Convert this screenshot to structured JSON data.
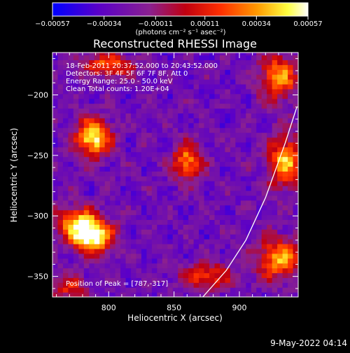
{
  "chart_data": {
    "type": "heatmap",
    "title": "Reconstructed RHESSI Image",
    "xlabel": "Heliocentric X (arcsec)",
    "ylabel": "Heliocentric Y (arcsec)",
    "xlim": [
      757,
      945
    ],
    "ylim": [
      -367,
      -165
    ],
    "xticks": [
      800,
      850,
      900
    ],
    "yticks": [
      -200,
      -250,
      -300,
      -350
    ],
    "xtick_labels": [
      "800",
      "850",
      "900"
    ],
    "ytick_labels": [
      "−200",
      "−250",
      "−300",
      "−350"
    ],
    "colorbar": {
      "range": [
        -0.00057,
        0.00057
      ],
      "ticks": [
        -0.00057,
        -0.00034,
        -0.00011,
        0.00011,
        0.00034,
        0.00057
      ],
      "tick_labels": [
        "−0.00057",
        "−0.00034",
        "−0.00011",
        "0.00011",
        "0.00034",
        "0.00057"
      ],
      "unit_label": "(photons cm⁻² s⁻¹ asec⁻²)",
      "colors": [
        "#0000ff",
        "#5a00c8",
        "#8a2090",
        "#c00010",
        "#ff3000",
        "#ff9900",
        "#ffff40",
        "#ffffff"
      ]
    },
    "annotations": {
      "time": "18-Feb-2011 20:37:52.000 to 20:43:52.000",
      "detectors": "Detectors: 3F 4F 5F 6F 7F 8F, Att 0",
      "energy": "Energy Range: 25.0 - 50.0 keV",
      "clean": "Clean     Total counts: 1.20E+04",
      "peak": "Position of Peak = [787,-317]"
    },
    "sources": [
      {
        "x": 788,
        "y": -235,
        "sx": 9,
        "sy": 11,
        "amp": 1.0
      },
      {
        "x": 787,
        "y": -317,
        "sx": 11,
        "sy": 10,
        "amp": 1.05
      },
      {
        "x": 775,
        "y": -305,
        "sx": 12,
        "sy": 9,
        "amp": 0.65
      },
      {
        "x": 860,
        "y": -255,
        "sx": 8,
        "sy": 10,
        "amp": 0.75
      },
      {
        "x": 930,
        "y": -185,
        "sx": 10,
        "sy": 13,
        "amp": 0.75
      },
      {
        "x": 935,
        "y": -255,
        "sx": 9,
        "sy": 15,
        "amp": 0.8
      },
      {
        "x": 930,
        "y": -335,
        "sx": 12,
        "sy": 12,
        "amp": 0.75
      },
      {
        "x": 875,
        "y": -350,
        "sx": 13,
        "sy": 8,
        "amp": 0.55
      },
      {
        "x": 800,
        "y": -175,
        "sx": 14,
        "sy": 7,
        "amp": 0.6
      },
      {
        "x": 770,
        "y": -360,
        "sx": 10,
        "sy": 8,
        "amp": 0.45
      }
    ],
    "limb": [
      [
        944,
        -210
      ],
      [
        935,
        -240
      ],
      [
        920,
        -285
      ],
      [
        905,
        -320
      ],
      [
        890,
        -345
      ],
      [
        872,
        -367
      ]
    ],
    "footer": "9-May-2022 04:14"
  }
}
